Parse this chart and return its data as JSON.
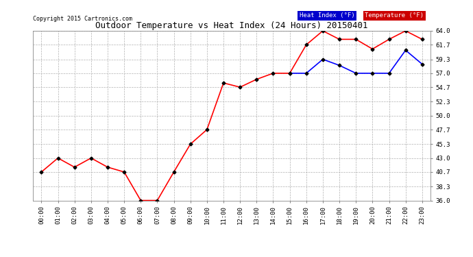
{
  "title": "Outdoor Temperature vs Heat Index (24 Hours) 20150401",
  "copyright": "Copyright 2015 Cartronics.com",
  "x_labels": [
    "00:00",
    "01:00",
    "02:00",
    "03:00",
    "04:00",
    "05:00",
    "06:00",
    "07:00",
    "08:00",
    "09:00",
    "10:00",
    "11:00",
    "12:00",
    "13:00",
    "14:00",
    "15:00",
    "16:00",
    "17:00",
    "18:00",
    "19:00",
    "20:00",
    "21:00",
    "22:00",
    "23:00"
  ],
  "temperature": [
    40.7,
    43.0,
    41.5,
    43.0,
    41.5,
    40.7,
    36.0,
    36.0,
    40.7,
    45.3,
    47.7,
    55.4,
    54.7,
    56.0,
    57.0,
    57.0,
    61.7,
    64.0,
    62.6,
    62.6,
    61.0,
    62.6,
    64.0,
    62.6
  ],
  "heat_index": [
    null,
    null,
    null,
    null,
    null,
    null,
    null,
    null,
    null,
    null,
    null,
    null,
    null,
    null,
    null,
    57.0,
    57.0,
    59.3,
    58.3,
    57.0,
    57.0,
    57.0,
    60.8,
    58.5
  ],
  "temp_color": "#ff0000",
  "heat_color": "#0000ff",
  "background_color": "#ffffff",
  "grid_color": "#b0b0b0",
  "ylim": [
    36.0,
    64.0
  ],
  "yticks": [
    36.0,
    38.3,
    40.7,
    43.0,
    45.3,
    47.7,
    50.0,
    52.3,
    54.7,
    57.0,
    59.3,
    61.7,
    64.0
  ],
  "legend_heat_bg": "#0000cc",
  "legend_temp_bg": "#cc0000",
  "legend_heat_text": "Heat Index (°F)",
  "legend_temp_text": "Temperature (°F)",
  "marker": "D",
  "marker_size": 2.5,
  "line_width": 1.2
}
